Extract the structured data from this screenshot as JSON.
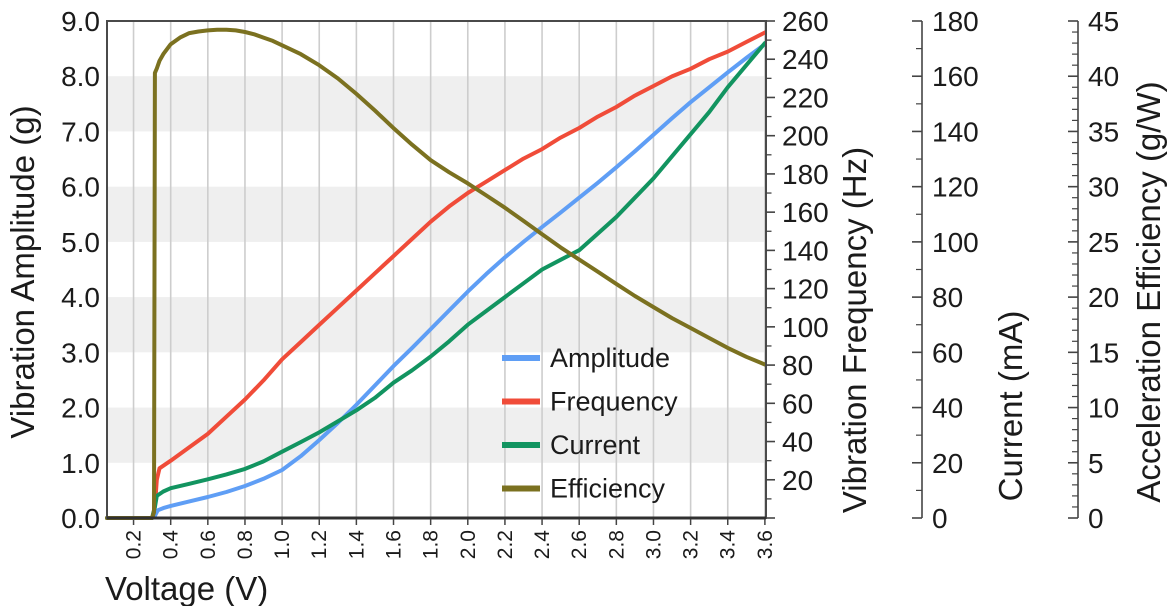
{
  "chart_data": {
    "type": "line",
    "title": "",
    "x_axis": {
      "label": "Voltage (V)",
      "min": 0.057,
      "max": 3.606,
      "tick_values": [
        0.2,
        0.4,
        0.6,
        0.8,
        1.0,
        1.2,
        1.4,
        1.6,
        1.8,
        2.0,
        2.2,
        2.4,
        2.6,
        2.8,
        3.0,
        3.2,
        3.4,
        3.6
      ],
      "tick_labels": [
        "0.2",
        "0.4",
        "0.6",
        "0.8",
        "1.0",
        "1.2",
        "1.4",
        "1.6",
        "1.8",
        "2.0",
        "2.2",
        "2.4",
        "2.6",
        "2.8",
        "3.0",
        "3.2",
        "3.4",
        "3.6"
      ]
    },
    "y_axes": [
      {
        "id": "amplitude",
        "label": "Vibration Amplitude (g)",
        "side": "left",
        "min": 0,
        "max": 9,
        "tick_values": [
          0,
          1,
          2,
          3,
          4,
          5,
          6,
          7,
          8,
          9
        ],
        "tick_labels": [
          "0.0",
          "1.0",
          "2.0",
          "3.0",
          "4.0",
          "5.0",
          "6.0",
          "7.0",
          "8.0",
          "9.0"
        ]
      },
      {
        "id": "frequency",
        "label": "Vibration Frequency (Hz)",
        "side": "right-attached",
        "min": 0,
        "max": 260,
        "major_step": 20,
        "minor_step": 10,
        "tick_values": [
          0,
          20,
          40,
          60,
          80,
          100,
          120,
          140,
          160,
          180,
          200,
          220,
          240,
          260
        ],
        "tick_labels": [
          "",
          "20",
          "40",
          "60",
          "80",
          "100",
          "120",
          "140",
          "160",
          "180",
          "200",
          "220",
          "240",
          "260"
        ]
      },
      {
        "id": "current",
        "label": "Current (mA)",
        "side": "right-floating",
        "min": 0,
        "max": 180,
        "major_step": 20,
        "minor_step": 10,
        "tick_values": [
          0,
          20,
          40,
          60,
          80,
          100,
          120,
          140,
          160,
          180
        ],
        "tick_labels": [
          "0",
          "20",
          "40",
          "60",
          "80",
          "100",
          "120",
          "140",
          "160",
          "180"
        ]
      },
      {
        "id": "efficiency",
        "label": "Acceleration Efficiency (g/W)",
        "side": "right-floating",
        "min": 0,
        "max": 45,
        "major_step": 5,
        "minor_step": 1,
        "tick_values": [
          0,
          5,
          10,
          15,
          20,
          25,
          30,
          35,
          40,
          45
        ],
        "tick_labels": [
          "0",
          "5",
          "10",
          "15",
          "20",
          "25",
          "30",
          "35",
          "40",
          "45"
        ]
      }
    ],
    "background_bands": {
      "axis": "amplitude",
      "pairs": [
        [
          1,
          2
        ],
        [
          3,
          4
        ],
        [
          5,
          6
        ],
        [
          7,
          8
        ]
      ],
      "color": "#efefef"
    },
    "grid": {
      "vertical": true,
      "horizontal": false,
      "color": "#cdcdcd"
    },
    "series": [
      {
        "name": "Amplitude",
        "axis": "amplitude",
        "color": "#5f9ef5",
        "points": [
          [
            0.057,
            0
          ],
          [
            0.2,
            0
          ],
          [
            0.3,
            0
          ],
          [
            0.315,
            0.04
          ],
          [
            0.33,
            0.14
          ],
          [
            0.36,
            0.18
          ],
          [
            0.4,
            0.22
          ],
          [
            0.5,
            0.3
          ],
          [
            0.6,
            0.38
          ],
          [
            0.7,
            0.47
          ],
          [
            0.8,
            0.58
          ],
          [
            0.9,
            0.71
          ],
          [
            1.0,
            0.87
          ],
          [
            1.1,
            1.12
          ],
          [
            1.2,
            1.41
          ],
          [
            1.3,
            1.72
          ],
          [
            1.4,
            2.05
          ],
          [
            1.5,
            2.4
          ],
          [
            1.6,
            2.75
          ],
          [
            1.7,
            3.08
          ],
          [
            1.8,
            3.42
          ],
          [
            1.9,
            3.76
          ],
          [
            2.0,
            4.1
          ],
          [
            2.1,
            4.42
          ],
          [
            2.2,
            4.72
          ],
          [
            2.3,
            5.0
          ],
          [
            2.4,
            5.27
          ],
          [
            2.5,
            5.53
          ],
          [
            2.6,
            5.8
          ],
          [
            2.7,
            6.07
          ],
          [
            2.8,
            6.35
          ],
          [
            2.9,
            6.64
          ],
          [
            3.0,
            6.94
          ],
          [
            3.1,
            7.24
          ],
          [
            3.2,
            7.53
          ],
          [
            3.3,
            7.8
          ],
          [
            3.4,
            8.07
          ],
          [
            3.5,
            8.33
          ],
          [
            3.6,
            8.58
          ]
        ]
      },
      {
        "name": "Frequency",
        "axis": "frequency",
        "color": "#f04c39",
        "points": [
          [
            0.057,
            0
          ],
          [
            0.3,
            0
          ],
          [
            0.315,
            6
          ],
          [
            0.325,
            20
          ],
          [
            0.34,
            26
          ],
          [
            0.4,
            30
          ],
          [
            0.5,
            37
          ],
          [
            0.6,
            44
          ],
          [
            0.7,
            53
          ],
          [
            0.8,
            62
          ],
          [
            0.9,
            72
          ],
          [
            1.0,
            83
          ],
          [
            1.1,
            92
          ],
          [
            1.2,
            101
          ],
          [
            1.3,
            110
          ],
          [
            1.4,
            119
          ],
          [
            1.5,
            128
          ],
          [
            1.6,
            137
          ],
          [
            1.7,
            146
          ],
          [
            1.8,
            155
          ],
          [
            1.9,
            163
          ],
          [
            2.0,
            170
          ],
          [
            2.1,
            176
          ],
          [
            2.2,
            182
          ],
          [
            2.3,
            188
          ],
          [
            2.4,
            193
          ],
          [
            2.5,
            199
          ],
          [
            2.6,
            204
          ],
          [
            2.7,
            210
          ],
          [
            2.8,
            215
          ],
          [
            2.9,
            221
          ],
          [
            3.0,
            226
          ],
          [
            3.1,
            231
          ],
          [
            3.2,
            235
          ],
          [
            3.3,
            240
          ],
          [
            3.4,
            244
          ],
          [
            3.5,
            249
          ],
          [
            3.6,
            254
          ]
        ]
      },
      {
        "name": "Current",
        "axis": "current",
        "color": "#129460",
        "points": [
          [
            0.057,
            0
          ],
          [
            0.3,
            0
          ],
          [
            0.315,
            4
          ],
          [
            0.325,
            8
          ],
          [
            0.36,
            9.6
          ],
          [
            0.4,
            10.8
          ],
          [
            0.5,
            12.4
          ],
          [
            0.6,
            14.0
          ],
          [
            0.7,
            15.8
          ],
          [
            0.8,
            17.8
          ],
          [
            0.9,
            20.5
          ],
          [
            1.0,
            24.0
          ],
          [
            1.1,
            27.5
          ],
          [
            1.2,
            31.0
          ],
          [
            1.3,
            35.0
          ],
          [
            1.4,
            39.0
          ],
          [
            1.5,
            43.5
          ],
          [
            1.6,
            49.0
          ],
          [
            1.7,
            53.5
          ],
          [
            1.8,
            58.5
          ],
          [
            1.9,
            64.0
          ],
          [
            2.0,
            70.0
          ],
          [
            2.1,
            75.0
          ],
          [
            2.2,
            80.0
          ],
          [
            2.3,
            85.0
          ],
          [
            2.4,
            90.0
          ],
          [
            2.5,
            93.5
          ],
          [
            2.6,
            97.0
          ],
          [
            2.7,
            103.0
          ],
          [
            2.8,
            109.0
          ],
          [
            2.9,
            116.0
          ],
          [
            3.0,
            123.0
          ],
          [
            3.1,
            131.0
          ],
          [
            3.2,
            139.0
          ],
          [
            3.3,
            147.0
          ],
          [
            3.4,
            156.0
          ],
          [
            3.5,
            164.0
          ],
          [
            3.6,
            172.0
          ]
        ]
      },
      {
        "name": "Efficiency",
        "axis": "efficiency",
        "color": "#7b7120",
        "points": [
          [
            0.057,
            0
          ],
          [
            0.3,
            0
          ],
          [
            0.31,
            0.5
          ],
          [
            0.315,
            40.3
          ],
          [
            0.325,
            40.7
          ],
          [
            0.34,
            41.4
          ],
          [
            0.36,
            42.0
          ],
          [
            0.4,
            42.9
          ],
          [
            0.45,
            43.5
          ],
          [
            0.5,
            43.9
          ],
          [
            0.55,
            44.05
          ],
          [
            0.6,
            44.15
          ],
          [
            0.65,
            44.2
          ],
          [
            0.7,
            44.2
          ],
          [
            0.75,
            44.15
          ],
          [
            0.8,
            44.0
          ],
          [
            0.85,
            43.8
          ],
          [
            0.9,
            43.5
          ],
          [
            0.95,
            43.2
          ],
          [
            1.0,
            42.8
          ],
          [
            1.1,
            42.0
          ],
          [
            1.2,
            41.0
          ],
          [
            1.3,
            39.8
          ],
          [
            1.4,
            38.4
          ],
          [
            1.5,
            36.9
          ],
          [
            1.6,
            35.3
          ],
          [
            1.7,
            33.8
          ],
          [
            1.8,
            32.4
          ],
          [
            1.9,
            31.3
          ],
          [
            2.0,
            30.3
          ],
          [
            2.1,
            29.2
          ],
          [
            2.2,
            28.1
          ],
          [
            2.3,
            26.9
          ],
          [
            2.4,
            25.7
          ],
          [
            2.5,
            24.5
          ],
          [
            2.6,
            23.4
          ],
          [
            2.7,
            22.3
          ],
          [
            2.8,
            21.2
          ],
          [
            2.9,
            20.1
          ],
          [
            3.0,
            19.1
          ],
          [
            3.1,
            18.1
          ],
          [
            3.2,
            17.2
          ],
          [
            3.3,
            16.3
          ],
          [
            3.4,
            15.4
          ],
          [
            3.5,
            14.6
          ],
          [
            3.6,
            13.9
          ]
        ]
      }
    ],
    "legend": {
      "position": "inside-lower-right",
      "items": [
        {
          "label": "Amplitude",
          "color": "#5f9ef5"
        },
        {
          "label": "Frequency",
          "color": "#f04c39"
        },
        {
          "label": "Current",
          "color": "#129460"
        },
        {
          "label": "Efficiency",
          "color": "#7b7120"
        }
      ]
    },
    "colors": {
      "text": "#1b1b1b",
      "band": "#efefef",
      "gridline": "#cdcdcd",
      "border": "#4a4a4a",
      "bottom_spine": "#303030",
      "floating_spine": "#5a5a5a",
      "tick": "#444444"
    }
  }
}
